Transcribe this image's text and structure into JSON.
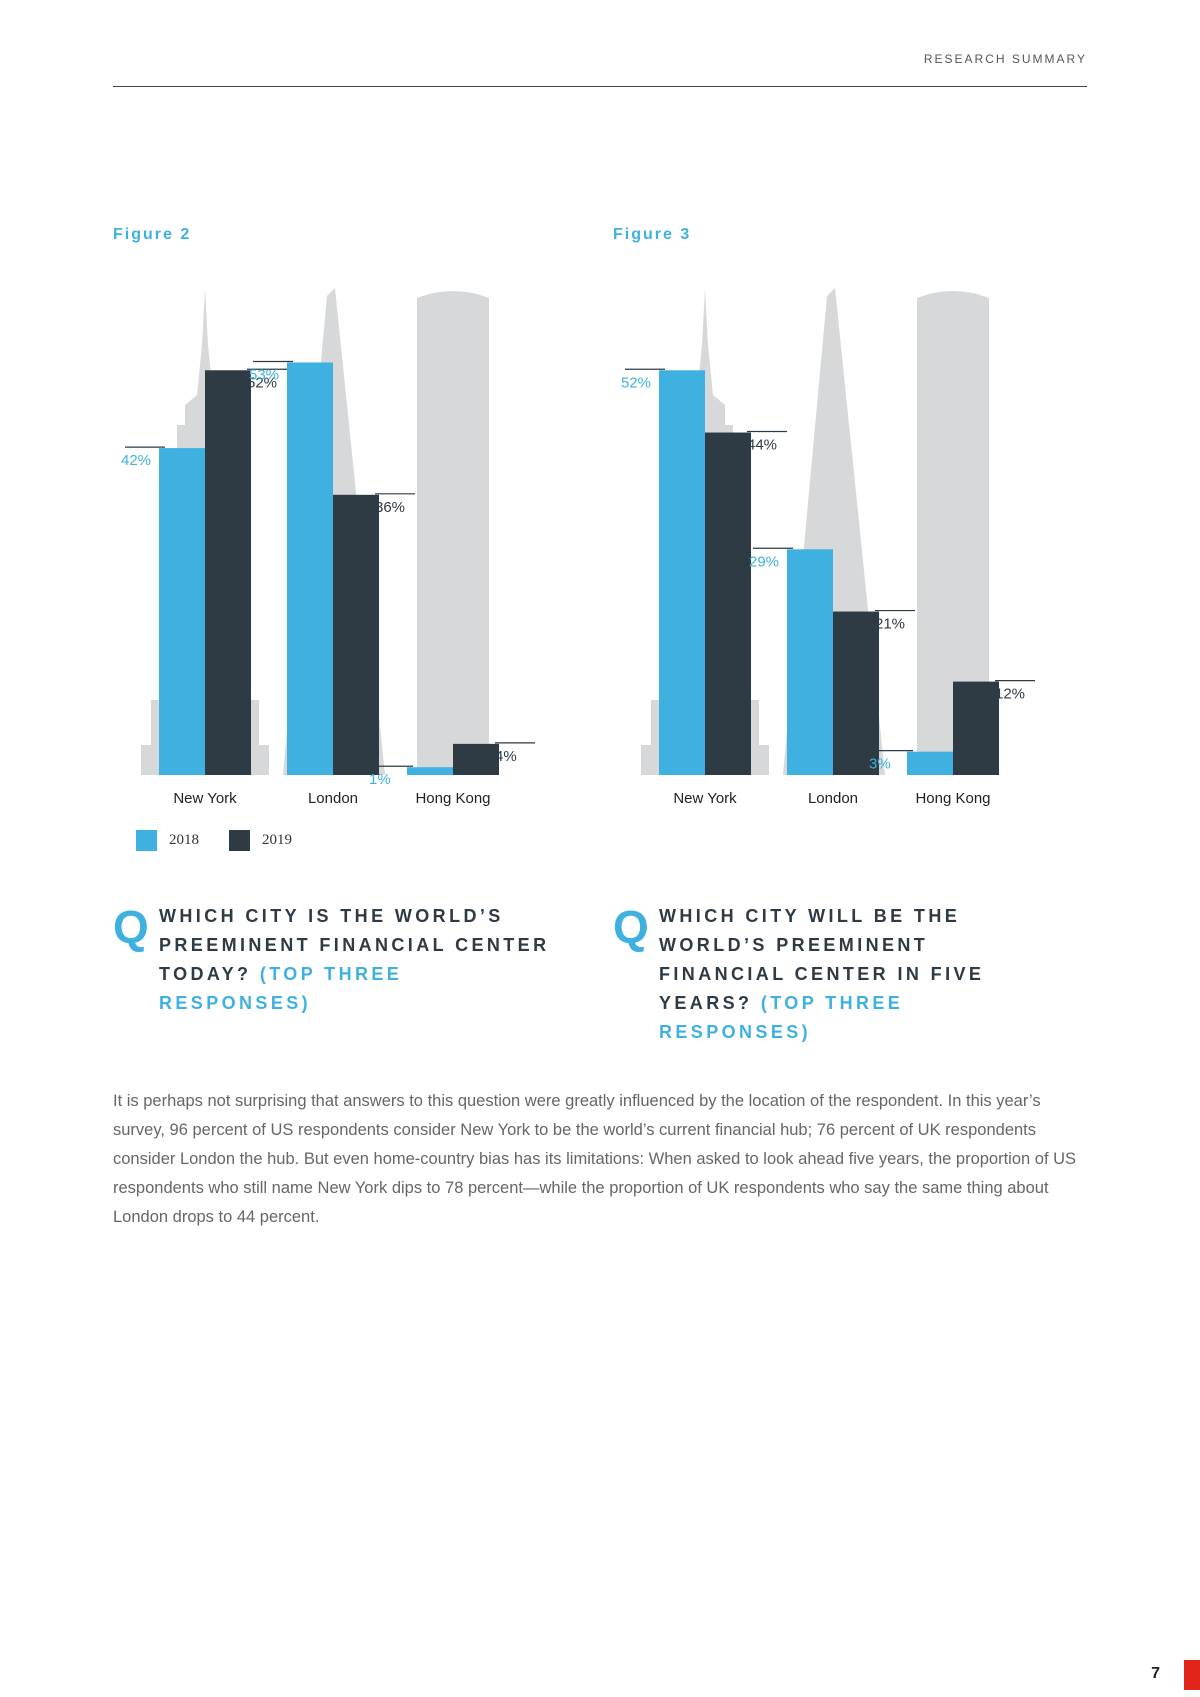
{
  "header": {
    "section_label": "RESEARCH SUMMARY"
  },
  "colors": {
    "series_2018": "#3eb1e0",
    "series_2019": "#2e3a44",
    "silhouette": "#d6d8da"
  },
  "figures": [
    {
      "title": "Figure 2",
      "question": {
        "text": "WHICH CITY IS THE WORLD’S PREEMINENT FINANCIAL CENTER TODAY?",
        "accent": "(TOP THREE RESPONSES)"
      }
    },
    {
      "title": "Figure 3",
      "question": {
        "text": "WHICH CITY WILL BE THE WORLD’S PREEMINENT FINANCIAL CENTER IN FIVE YEARS?",
        "accent": "(TOP THREE RESPONSES)"
      }
    }
  ],
  "legend": {
    "items": [
      {
        "label": "2018"
      },
      {
        "label": "2019"
      }
    ]
  },
  "chart_data": [
    {
      "type": "bar",
      "categories": [
        "New York",
        "London",
        "Hong Kong"
      ],
      "series": [
        {
          "name": "2018",
          "values": [
            42,
            53,
            1
          ]
        },
        {
          "name": "2019",
          "values": [
            52,
            36,
            4
          ]
        }
      ],
      "value_labels": [
        [
          "42%",
          "53%",
          "1%"
        ],
        [
          "52%",
          "36%",
          "4%"
        ]
      ],
      "ylim": [
        0,
        60
      ],
      "grid": false,
      "legend_position": "bottom-left"
    },
    {
      "type": "bar",
      "categories": [
        "New York",
        "London",
        "Hong Kong"
      ],
      "series": [
        {
          "name": "2018",
          "values": [
            52,
            29,
            3
          ]
        },
        {
          "name": "2019",
          "values": [
            44,
            21,
            12
          ]
        }
      ],
      "value_labels": [
        [
          "52%",
          "29%",
          "3%"
        ],
        [
          "44%",
          "21%",
          "12%"
        ]
      ],
      "ylim": [
        0,
        60
      ],
      "grid": false,
      "legend_position": "bottom-left"
    }
  ],
  "body_text": "It is perhaps not surprising that answers to this question were greatly influenced by the location of the respondent. In this year’s survey, 96 percent of US respondents consider New York to be the world’s current financial hub; 76 percent of UK respondents consider London the hub. But even home-country bias has its limitations: When asked to look ahead five years, the proportion of US respondents who still name New York dips to 78 percent—while the proportion of UK respondents who say the same thing about London drops to 44 percent.",
  "page_number": "7"
}
